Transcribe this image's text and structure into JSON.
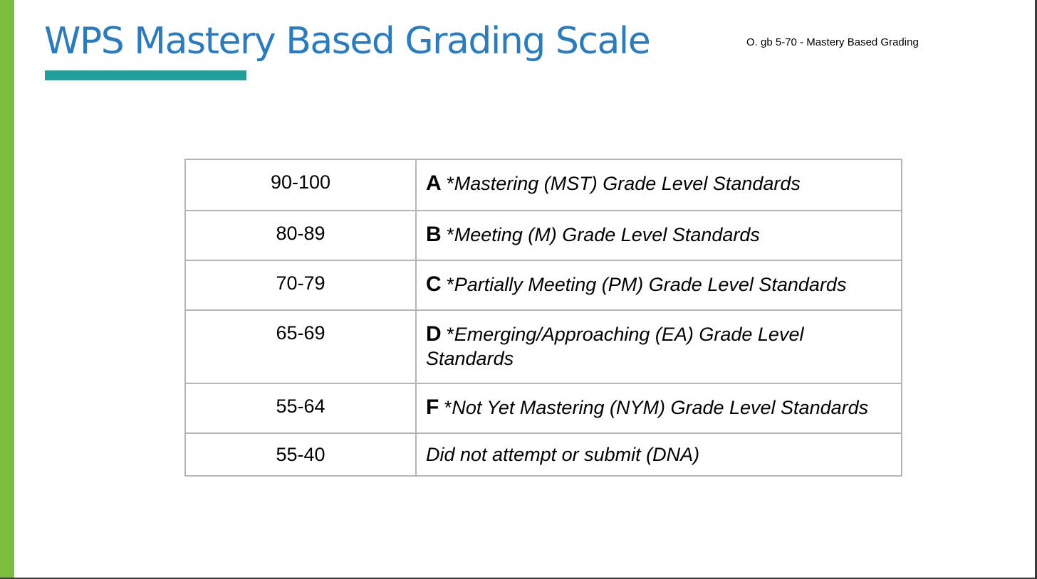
{
  "slide": {
    "title": "WPS Mastery Based Grading Scale",
    "policy_reference": "O. gb 5-70 - Mastery Based Grading",
    "accent_colors": {
      "left_bar": "#7cbd3f",
      "title_text": "#2b7bbd",
      "title_underline": "#1f9f9a"
    }
  },
  "grading_table": {
    "rows": [
      {
        "range": "90-100",
        "letter": "A",
        "marker": "*",
        "description": "Mastering (MST) Grade Level Standards"
      },
      {
        "range": "80-89",
        "letter": "B",
        "marker": "*",
        "description": "Meeting (M) Grade Level Standards"
      },
      {
        "range": "70-79",
        "letter": "C",
        "marker": "*",
        "description": "Partially Meeting (PM) Grade Level Standards"
      },
      {
        "range": "65-69",
        "letter": "D",
        "marker": "*",
        "description": "Emerging/Approaching (EA) Grade Level Standards"
      },
      {
        "range": "55-64",
        "letter": "F",
        "marker": "*",
        "description": "Not Yet Mastering (NYM) Grade Level Standards"
      },
      {
        "range": "55-40",
        "description": "Did not attempt or submit (DNA)"
      }
    ]
  }
}
